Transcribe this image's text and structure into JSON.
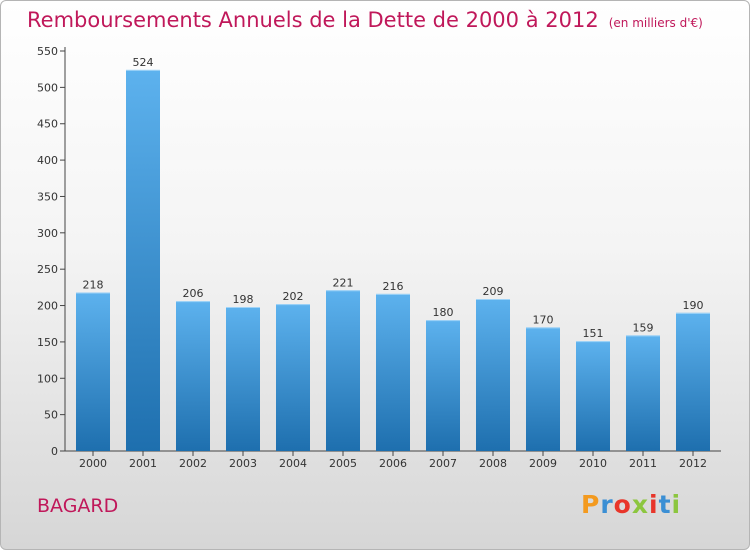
{
  "title": "Remboursements Annuels de la Dette de 2000 à 2012",
  "unit": "(en milliers d'€)",
  "commune": "BAGARD",
  "logo": {
    "letters": [
      "P",
      "r",
      "o",
      "x",
      "i",
      "t",
      "i"
    ],
    "colors": [
      "#f39a1f",
      "#3b8fd4",
      "#e8352a",
      "#8cc63f",
      "#e8352a",
      "#3b8fd4",
      "#8cc63f"
    ]
  },
  "colors": {
    "bar_top": "#5db2ee",
    "bar_bottom": "#1e6fae",
    "title": "#c0185a"
  },
  "chart_data": {
    "type": "bar",
    "title": "Remboursements Annuels de la Dette de 2000 à 2012",
    "ylabel": "",
    "xlabel": "",
    "categories": [
      "2000",
      "2001",
      "2002",
      "2003",
      "2004",
      "2005",
      "2006",
      "2007",
      "2008",
      "2009",
      "2010",
      "2011",
      "2012"
    ],
    "values": [
      218,
      524,
      206,
      198,
      202,
      221,
      216,
      180,
      209,
      170,
      151,
      159,
      190
    ],
    "ylim": [
      0,
      550
    ],
    "yticks": [
      0,
      50,
      100,
      150,
      200,
      250,
      300,
      350,
      400,
      450,
      500,
      550
    ],
    "grid": false,
    "legend": "none"
  }
}
